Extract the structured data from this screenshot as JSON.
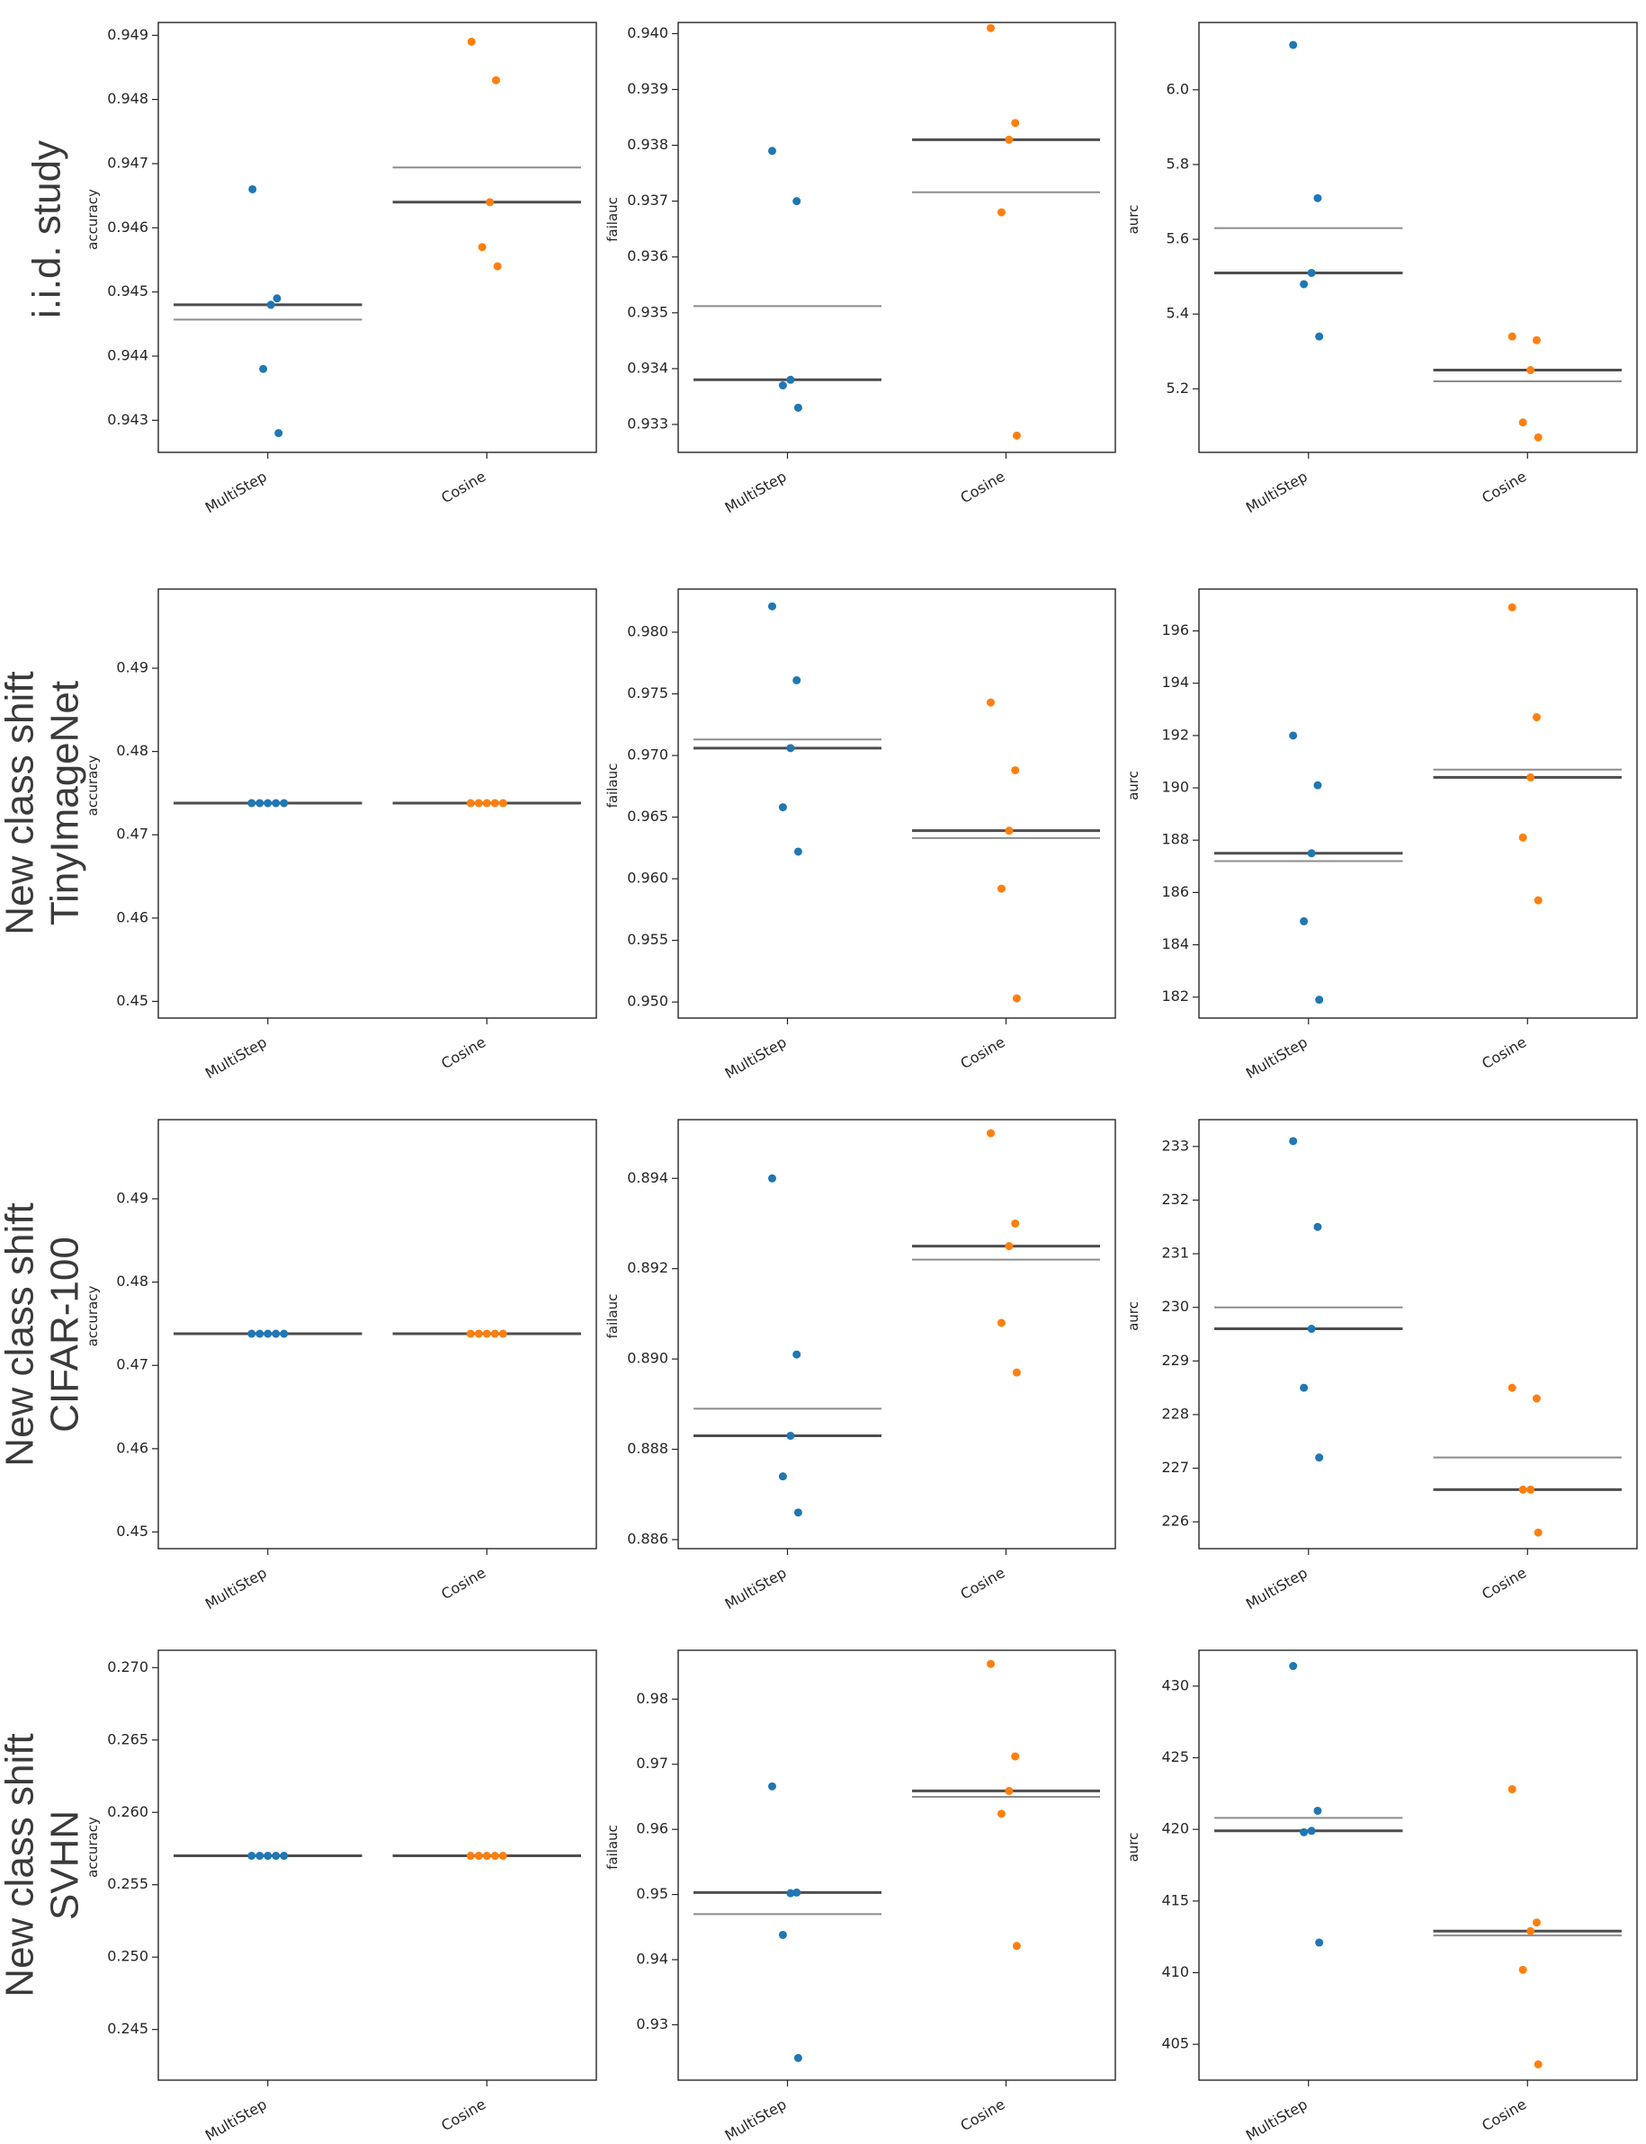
{
  "row_labels": [
    [
      "i.i.d. study"
    ],
    [
      "New class shift",
      "TinyImageNet"
    ],
    [
      "New class shift",
      "CIFAR-100"
    ],
    [
      "New class shift",
      "SVHN"
    ]
  ],
  "colors": {
    "MultiStep": "#1f77b4",
    "Cosine": "#ff7f0e",
    "mean_line": "#8c8c8c",
    "median_line": "#4d4d4d",
    "axes": "#262626"
  },
  "chart_data": [
    {
      "type": "scatter",
      "panel": "r1c1",
      "ylabel": "accuracy",
      "categories": [
        "MultiStep",
        "Cosine"
      ],
      "ylim": [
        0.9425,
        0.9492
      ],
      "yticks": [
        0.943,
        0.944,
        0.945,
        0.946,
        0.947,
        0.948,
        0.949
      ],
      "decimals": 3,
      "series": [
        {
          "name": "MultiStep",
          "values": [
            0.9466,
            0.9449,
            0.9448,
            0.9438,
            0.9428
          ],
          "mean": 0.94457,
          "median": 0.9448
        },
        {
          "name": "Cosine",
          "values": [
            0.9489,
            0.9483,
            0.9464,
            0.9457,
            0.9454
          ],
          "mean": 0.94694,
          "median": 0.9464
        }
      ]
    },
    {
      "type": "scatter",
      "panel": "r1c2",
      "ylabel": "failauc",
      "categories": [
        "MultiStep",
        "Cosine"
      ],
      "ylim": [
        0.9325,
        0.9402
      ],
      "yticks": [
        0.933,
        0.934,
        0.935,
        0.936,
        0.937,
        0.938,
        0.939,
        0.94
      ],
      "decimals": 3,
      "series": [
        {
          "name": "MultiStep",
          "values": [
            0.9379,
            0.937,
            0.9338,
            0.9337,
            0.9333
          ],
          "mean": 0.93512,
          "median": 0.9338
        },
        {
          "name": "Cosine",
          "values": [
            0.9401,
            0.9384,
            0.9381,
            0.9368,
            0.9328
          ],
          "mean": 0.93716,
          "median": 0.9381
        }
      ]
    },
    {
      "type": "scatter",
      "panel": "r1c3",
      "ylabel": "aurc",
      "categories": [
        "MultiStep",
        "Cosine"
      ],
      "ylim": [
        5.03,
        6.18
      ],
      "yticks": [
        5.2,
        5.4,
        5.6,
        5.8,
        6.0
      ],
      "decimals": 1,
      "series": [
        {
          "name": "MultiStep",
          "values": [
            6.12,
            5.71,
            5.51,
            5.48,
            5.34
          ],
          "mean": 5.63,
          "median": 5.51
        },
        {
          "name": "Cosine",
          "values": [
            5.34,
            5.33,
            5.25,
            5.11,
            5.07
          ],
          "mean": 5.22,
          "median": 5.25
        }
      ]
    },
    {
      "type": "scatter",
      "panel": "r2c1",
      "ylabel": "accuracy",
      "categories": [
        "MultiStep",
        "Cosine"
      ],
      "ylim": [
        0.448,
        0.4995
      ],
      "yticks": [
        0.45,
        0.46,
        0.47,
        0.48,
        0.49
      ],
      "decimals": 2,
      "series": [
        {
          "name": "MultiStep",
          "values": [
            0.4738,
            0.4738,
            0.4738,
            0.4738,
            0.4738
          ],
          "mean": 0.4738,
          "median": 0.4738
        },
        {
          "name": "Cosine",
          "values": [
            0.4738,
            0.4738,
            0.4738,
            0.4738,
            0.4738
          ],
          "mean": 0.4738,
          "median": 0.4738
        }
      ]
    },
    {
      "type": "scatter",
      "panel": "r2c2",
      "ylabel": "failauc",
      "categories": [
        "MultiStep",
        "Cosine"
      ],
      "ylim": [
        0.9487,
        0.9835
      ],
      "yticks": [
        0.95,
        0.955,
        0.96,
        0.965,
        0.97,
        0.975,
        0.98
      ],
      "decimals": 3,
      "series": [
        {
          "name": "MultiStep",
          "values": [
            0.9821,
            0.9761,
            0.9706,
            0.9658,
            0.9622
          ],
          "mean": 0.9713,
          "median": 0.9706
        },
        {
          "name": "Cosine",
          "values": [
            0.9743,
            0.9688,
            0.9639,
            0.9592,
            0.9503
          ],
          "mean": 0.9633,
          "median": 0.9639
        }
      ]
    },
    {
      "type": "scatter",
      "panel": "r2c3",
      "ylabel": "aurc",
      "categories": [
        "MultiStep",
        "Cosine"
      ],
      "ylim": [
        181.2,
        197.6
      ],
      "yticks": [
        182,
        184,
        186,
        188,
        190,
        192,
        194,
        196
      ],
      "decimals": 0,
      "series": [
        {
          "name": "MultiStep",
          "values": [
            192.0,
            190.1,
            187.5,
            184.9,
            181.9
          ],
          "mean": 187.2,
          "median": 187.5
        },
        {
          "name": "Cosine",
          "values": [
            196.9,
            192.7,
            190.4,
            188.1,
            185.7
          ],
          "mean": 190.7,
          "median": 190.4
        }
      ]
    },
    {
      "type": "scatter",
      "panel": "r3c1",
      "ylabel": "accuracy",
      "categories": [
        "MultiStep",
        "Cosine"
      ],
      "ylim": [
        0.448,
        0.4995
      ],
      "yticks": [
        0.45,
        0.46,
        0.47,
        0.48,
        0.49
      ],
      "decimals": 2,
      "series": [
        {
          "name": "MultiStep",
          "values": [
            0.4738,
            0.4738,
            0.4738,
            0.4738,
            0.4738
          ],
          "mean": 0.4738,
          "median": 0.4738
        },
        {
          "name": "Cosine",
          "values": [
            0.4738,
            0.4738,
            0.4738,
            0.4738,
            0.4738
          ],
          "mean": 0.4738,
          "median": 0.4738
        }
      ]
    },
    {
      "type": "scatter",
      "panel": "r3c2",
      "ylabel": "failauc",
      "categories": [
        "MultiStep",
        "Cosine"
      ],
      "ylim": [
        0.8858,
        0.8953
      ],
      "yticks": [
        0.886,
        0.888,
        0.89,
        0.892,
        0.894
      ],
      "decimals": 3,
      "series": [
        {
          "name": "MultiStep",
          "values": [
            0.894,
            0.8901,
            0.8883,
            0.8874,
            0.8866
          ],
          "mean": 0.8889,
          "median": 0.8883
        },
        {
          "name": "Cosine",
          "values": [
            0.895,
            0.893,
            0.8925,
            0.8908,
            0.8897
          ],
          "mean": 0.8922,
          "median": 0.8925
        }
      ]
    },
    {
      "type": "scatter",
      "panel": "r3c3",
      "ylabel": "aurc",
      "categories": [
        "MultiStep",
        "Cosine"
      ],
      "ylim": [
        225.5,
        233.5
      ],
      "yticks": [
        226,
        227,
        228,
        229,
        230,
        231,
        232,
        233
      ],
      "decimals": 0,
      "series": [
        {
          "name": "MultiStep",
          "values": [
            233.1,
            231.5,
            229.6,
            228.5,
            227.2
          ],
          "mean": 230.0,
          "median": 229.6
        },
        {
          "name": "Cosine",
          "values": [
            228.5,
            228.3,
            226.6,
            226.6,
            225.8
          ],
          "mean": 227.2,
          "median": 226.6
        }
      ]
    },
    {
      "type": "scatter",
      "panel": "r4c1",
      "ylabel": "accuracy",
      "categories": [
        "MultiStep",
        "Cosine"
      ],
      "ylim": [
        0.2415,
        0.2712
      ],
      "yticks": [
        0.245,
        0.25,
        0.255,
        0.26,
        0.265,
        0.27
      ],
      "decimals": 3,
      "series": [
        {
          "name": "MultiStep",
          "values": [
            0.257,
            0.257,
            0.257,
            0.257,
            0.257
          ],
          "mean": 0.257,
          "median": 0.257
        },
        {
          "name": "Cosine",
          "values": [
            0.257,
            0.257,
            0.257,
            0.257,
            0.257
          ],
          "mean": 0.257,
          "median": 0.257
        }
      ]
    },
    {
      "type": "scatter",
      "panel": "r4c2",
      "ylabel": "failauc",
      "categories": [
        "MultiStep",
        "Cosine"
      ],
      "ylim": [
        0.9215,
        0.9875
      ],
      "yticks": [
        0.93,
        0.94,
        0.95,
        0.96,
        0.97,
        0.98
      ],
      "decimals": 2,
      "series": [
        {
          "name": "MultiStep",
          "values": [
            0.9666,
            0.9503,
            0.9502,
            0.9438,
            0.9249
          ],
          "mean": 0.947,
          "median": 0.9503
        },
        {
          "name": "Cosine",
          "values": [
            0.9854,
            0.9712,
            0.9659,
            0.9624,
            0.9421
          ],
          "mean": 0.965,
          "median": 0.9659
        }
      ]
    },
    {
      "type": "scatter",
      "panel": "r4c3",
      "ylabel": "aurc",
      "categories": [
        "MultiStep",
        "Cosine"
      ],
      "ylim": [
        402.5,
        432.5
      ],
      "yticks": [
        405,
        410,
        415,
        420,
        425,
        430
      ],
      "decimals": 0,
      "series": [
        {
          "name": "MultiStep",
          "values": [
            431.4,
            421.3,
            419.9,
            419.8,
            412.1
          ],
          "mean": 420.8,
          "median": 419.9
        },
        {
          "name": "Cosine",
          "values": [
            422.8,
            413.5,
            412.9,
            410.2,
            403.6
          ],
          "mean": 412.6,
          "median": 412.9
        }
      ]
    }
  ]
}
